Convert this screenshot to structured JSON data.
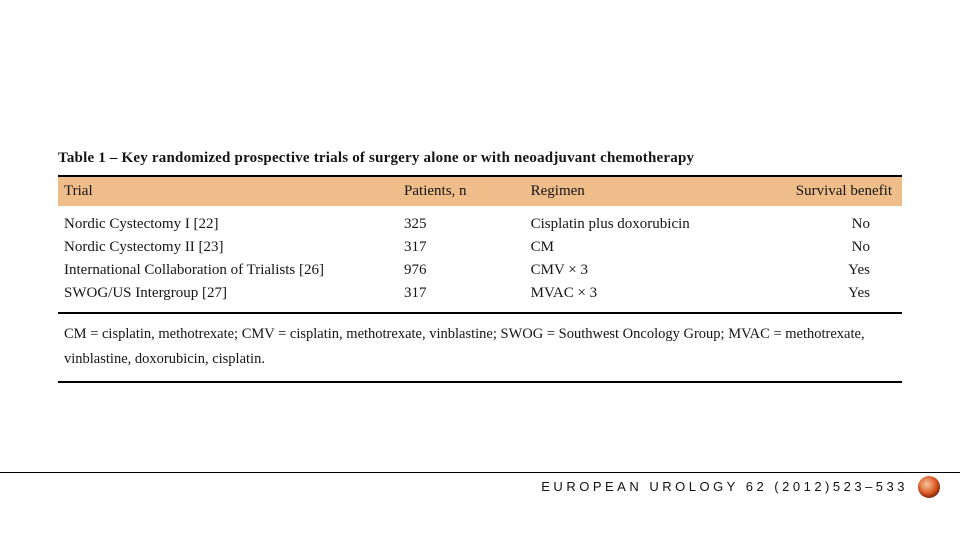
{
  "caption": "Table 1 – Key randomized prospective trials of surgery alone or with neoadjuvant chemotherapy",
  "columns": {
    "trial": "Trial",
    "patients": "Patients, n",
    "regimen": "Regimen",
    "survival": "Survival benefit"
  },
  "rows": [
    {
      "trial": "Nordic Cystectomy I [22]",
      "patients": "325",
      "regimen": "Cisplatin plus doxorubicin",
      "survival": "No"
    },
    {
      "trial": "Nordic Cystectomy II [23]",
      "patients": "317",
      "regimen": "CM",
      "survival": "No"
    },
    {
      "trial": "International Collaboration of Trialists [26]",
      "patients": "976",
      "regimen": "CMV × 3",
      "survival": "Yes"
    },
    {
      "trial": "SWOG/US Intergroup [27]",
      "patients": "317",
      "regimen": "MVAC × 3",
      "survival": "Yes"
    }
  ],
  "footnote": "CM = cisplatin, methotrexate; CMV = cisplatin, methotrexate, vinblastine; SWOG = Southwest Oncology Group; MVAC = methotrexate, vinblastine, doxorubicin, cisplatin.",
  "footer": "EUROPEAN UROLOGY 62 (2012)523–533",
  "colors": {
    "header_bg": "#eebd8a",
    "rule": "#000000",
    "text": "#151515",
    "page_bg": "#ffffff",
    "dot_inner": "#f6c39a",
    "dot_mid": "#d94f1a",
    "dot_outer": "#8e2f0e"
  }
}
